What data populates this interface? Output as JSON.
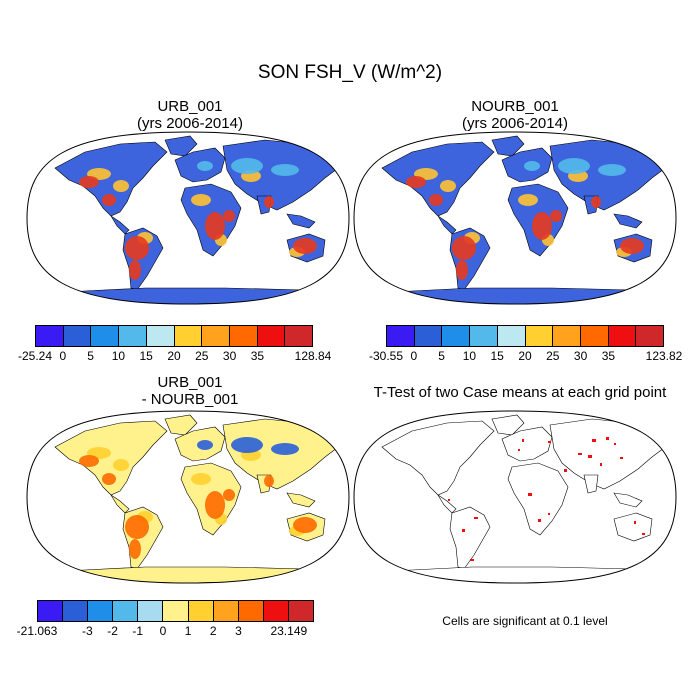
{
  "figure": {
    "title": "SON FSH_V (W/m^2)",
    "footnote": "Cells are significant at 0.1 level"
  },
  "panels": [
    {
      "id": "urb",
      "title_line1": "URB_001",
      "title_line2": "(yrs 2006-2014)"
    },
    {
      "id": "nourb",
      "title_line1": "NOURB_001",
      "title_line2": "(yrs 2006-2014)"
    },
    {
      "id": "diff",
      "title_line1": "URB_001",
      "title_line2": "- NOURB_001"
    },
    {
      "id": "ttest",
      "title_line1": "T-Test of two Case means at each grid point",
      "title_line2": ""
    }
  ],
  "colorbars": [
    {
      "id": "urb",
      "labels": [
        "-25.24",
        "0",
        "5",
        "10",
        "15",
        "20",
        "25",
        "30",
        "35",
        "128.84"
      ],
      "colors": [
        "#3a1bf4",
        "#2a5fd8",
        "#1e8ee8",
        "#53b9ea",
        "#bde8f2",
        "#ffd030",
        "#ffa31f",
        "#ff6a00",
        "#ee1010",
        "#d0282a"
      ]
    },
    {
      "id": "nourb",
      "labels": [
        "-30.55",
        "0",
        "5",
        "10",
        "15",
        "20",
        "25",
        "30",
        "35",
        "123.82"
      ],
      "colors": [
        "#3a1bf4",
        "#2a5fd8",
        "#1e8ee8",
        "#53b9ea",
        "#bde8f2",
        "#ffd030",
        "#ffa31f",
        "#ff6a00",
        "#ee1010",
        "#d0282a"
      ]
    },
    {
      "id": "diff",
      "labels": [
        "-21.063",
        "-3",
        "-2",
        "-1",
        "0",
        "1",
        "2",
        "3",
        "23.149"
      ],
      "label_slots": [
        0,
        2,
        3,
        4,
        5,
        6,
        7,
        8,
        10
      ],
      "colors": [
        "#3a1bf4",
        "#2a5fd8",
        "#1e8ee8",
        "#53b9ea",
        "#a7dcf0",
        "#fff28c",
        "#ffd030",
        "#ffa31f",
        "#ff6a00",
        "#ee1010",
        "#d0282a"
      ]
    }
  ],
  "map_fills": {
    "ocean": "#ffffff",
    "urb": {
      "land": "#3d63dd",
      "warm": "#e63a1e",
      "mid": "#ffc233",
      "cool": "#53b9ea"
    },
    "nourb": {
      "land": "#3d63dd",
      "warm": "#e63a1e",
      "mid": "#ffc233",
      "cool": "#53b9ea"
    },
    "diff": {
      "land": "#fff28c",
      "warm": "#ff6a00",
      "mid": "#ffd030",
      "cool": "#2a5fd8"
    },
    "ttest": {
      "land": "#ffffff",
      "sig": "#ee1010"
    }
  }
}
